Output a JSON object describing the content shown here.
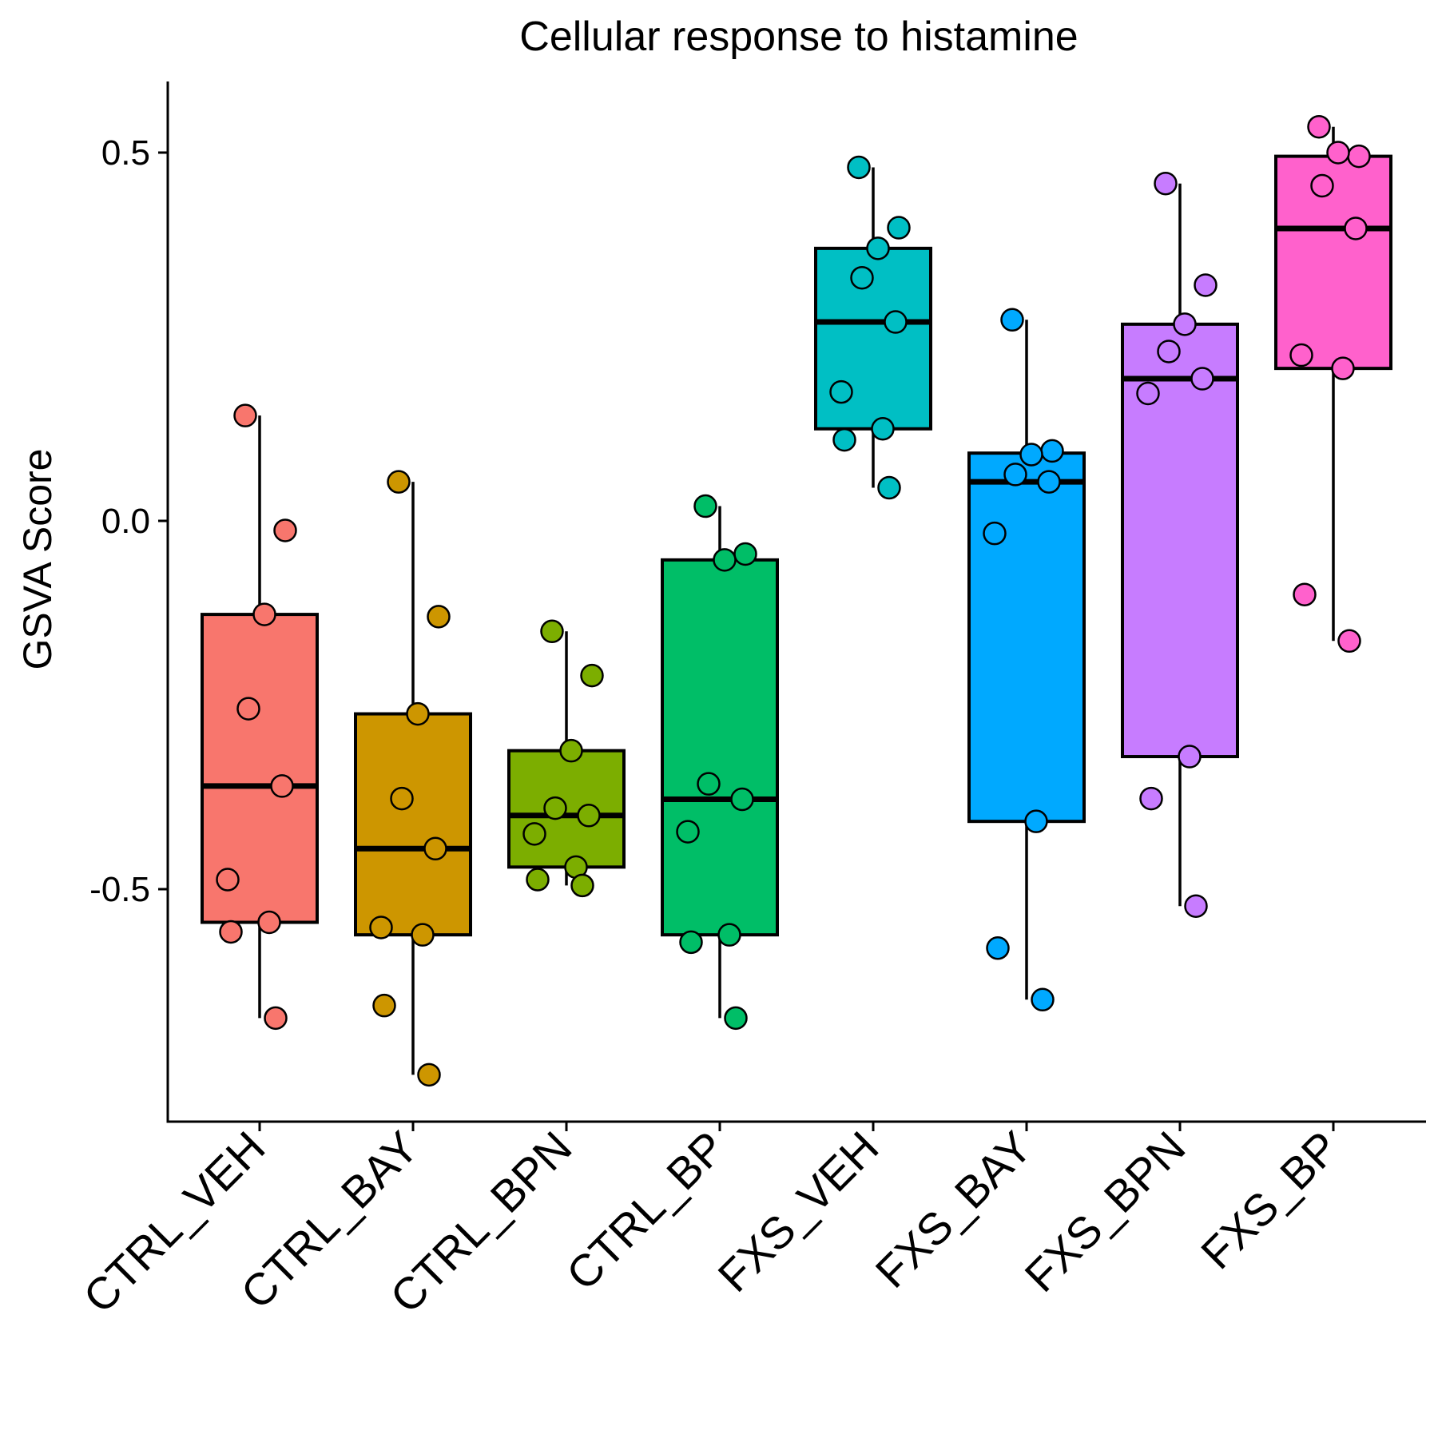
{
  "chart_data": {
    "type": "box",
    "title": "Cellular response to histamine",
    "ylabel": "GSVA Score",
    "xlabel": "",
    "ylim": [
      -0.82,
      0.6
    ],
    "yticks": [
      {
        "value": 0.5,
        "label": "0.5"
      },
      {
        "value": 0.0,
        "label": "0.0"
      },
      {
        "value": -0.5,
        "label": "-0.5"
      }
    ],
    "grid": false,
    "legend": "none",
    "categories": [
      "CTRL_VEH",
      "CTRL_BAY",
      "CTRL_BPN",
      "CTRL_BP",
      "FXS_VEH",
      "FXS_BAY",
      "FXS_BPN",
      "FXS_BP"
    ],
    "groups": [
      {
        "name": "CTRL_VEH",
        "color": "#F8766D",
        "box": {
          "whisker_low": -0.675,
          "q1": -0.545,
          "median": -0.36,
          "q3": -0.127,
          "whisker_high": 0.143
        },
        "points": [
          0.143,
          -0.013,
          -0.127,
          -0.255,
          -0.36,
          -0.487,
          -0.545,
          -0.558,
          -0.675
        ]
      },
      {
        "name": "CTRL_BAY",
        "color": "#CD9600",
        "box": {
          "whisker_low": -0.752,
          "q1": -0.562,
          "median": -0.445,
          "q3": -0.262,
          "whisker_high": 0.053
        },
        "points": [
          0.053,
          -0.13,
          -0.262,
          -0.377,
          -0.445,
          -0.552,
          -0.562,
          -0.658,
          -0.752
        ]
      },
      {
        "name": "CTRL_BPN",
        "color": "#7CAE00",
        "box": {
          "whisker_low": -0.495,
          "q1": -0.47,
          "median": -0.4,
          "q3": -0.312,
          "whisker_high": -0.15
        },
        "points": [
          -0.15,
          -0.21,
          -0.312,
          -0.39,
          -0.4,
          -0.425,
          -0.47,
          -0.487,
          -0.495
        ]
      },
      {
        "name": "CTRL_BP",
        "color": "#00BE67",
        "box": {
          "whisker_low": -0.675,
          "q1": -0.562,
          "median": -0.378,
          "q3": -0.053,
          "whisker_high": 0.02
        },
        "points": [
          0.02,
          -0.045,
          -0.053,
          -0.357,
          -0.378,
          -0.422,
          -0.562,
          -0.572,
          -0.675
        ]
      },
      {
        "name": "FXS_VEH",
        "color": "#00BFC4",
        "box": {
          "whisker_low": 0.045,
          "q1": 0.125,
          "median": 0.27,
          "q3": 0.37,
          "whisker_high": 0.48
        },
        "points": [
          0.48,
          0.398,
          0.37,
          0.33,
          0.27,
          0.175,
          0.125,
          0.11,
          0.045
        ]
      },
      {
        "name": "FXS_BAY",
        "color": "#00A9FF",
        "box": {
          "whisker_low": -0.65,
          "q1": -0.408,
          "median": 0.053,
          "q3": 0.092,
          "whisker_high": 0.273
        },
        "points": [
          0.273,
          0.095,
          0.09,
          0.063,
          0.053,
          -0.017,
          -0.408,
          -0.58,
          -0.65
        ]
      },
      {
        "name": "FXS_BPN",
        "color": "#C77CFF",
        "box": {
          "whisker_low": -0.523,
          "q1": -0.32,
          "median": 0.193,
          "q3": 0.267,
          "whisker_high": 0.458
        },
        "points": [
          0.458,
          0.32,
          0.267,
          0.23,
          0.193,
          0.173,
          -0.32,
          -0.377,
          -0.523
        ]
      },
      {
        "name": "FXS_BP",
        "color": "#FF61CC",
        "box": {
          "whisker_low": -0.163,
          "q1": 0.207,
          "median": 0.397,
          "q3": 0.495,
          "whisker_high": 0.535
        },
        "points": [
          0.535,
          0.495,
          0.5,
          0.455,
          0.397,
          0.225,
          0.207,
          -0.1,
          -0.163
        ]
      }
    ]
  }
}
